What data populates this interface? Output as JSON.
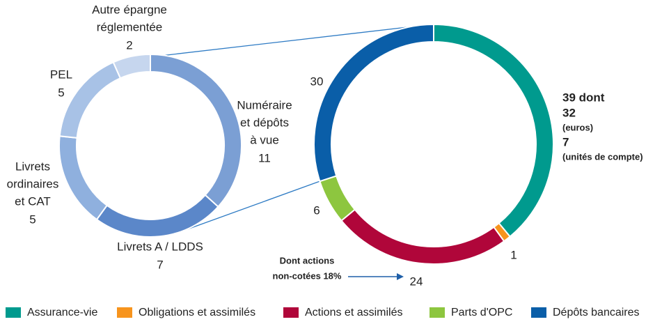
{
  "chart_data": [
    {
      "type": "donut",
      "categories": [
        "Assurance-vie",
        "Obligations et assimilés",
        "Actions et assimilés",
        "Parts d'OPC",
        "Dépôts bancaires"
      ],
      "values": [
        39,
        1,
        24,
        6,
        30
      ],
      "value_labels": [
        "39 dont",
        "1",
        "24",
        "6",
        "30"
      ],
      "colors": [
        "#009a8e",
        "#f7941d",
        "#b0063a",
        "#8dc63f",
        "#0a5ea8"
      ],
      "breakdown": [
        {
          "value": 32,
          "label": "(euros)"
        },
        {
          "value": 7,
          "label": "(unités de compte)"
        }
      ],
      "annotation": [
        "Dont actions",
        "non-cotées 18%"
      ],
      "legend": "bottom"
    },
    {
      "type": "donut",
      "categories": [
        [
          "Numéraire",
          "et dépôts",
          "à vue"
        ],
        [
          "Livrets A / LDDS"
        ],
        [
          "Livrets",
          "ordinaires",
          "et CAT"
        ],
        [
          "PEL"
        ],
        [
          "Autre épargne",
          "réglementée"
        ]
      ],
      "values": [
        11,
        7,
        5,
        5,
        2
      ],
      "colors": [
        "#7b9fd4",
        "#5b87c9",
        "#8fb0de",
        "#a8c2e6",
        "#c6d6ee"
      ]
    }
  ]
}
